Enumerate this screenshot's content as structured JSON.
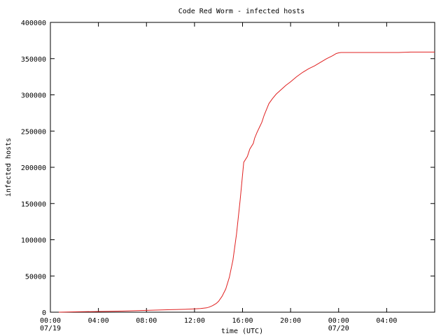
{
  "chart_data": {
    "type": "line",
    "title": "Code Red Worm - infected hosts",
    "xlabel": "time (UTC)",
    "ylabel": "infected hosts",
    "ylim": [
      0,
      400000
    ],
    "xlim": [
      0,
      32
    ],
    "grid": false,
    "yticks": [
      {
        "value": 0,
        "label": "0"
      },
      {
        "value": 50000,
        "label": "50000"
      },
      {
        "value": 100000,
        "label": "100000"
      },
      {
        "value": 150000,
        "label": "150000"
      },
      {
        "value": 200000,
        "label": "200000"
      },
      {
        "value": 250000,
        "label": "250000"
      },
      {
        "value": 300000,
        "label": "300000"
      },
      {
        "value": 350000,
        "label": "350000"
      },
      {
        "value": 400000,
        "label": "400000"
      }
    ],
    "xticks": [
      {
        "value": 0,
        "label": "00:00",
        "sublabel": "07/19"
      },
      {
        "value": 4,
        "label": "04:00",
        "sublabel": ""
      },
      {
        "value": 8,
        "label": "08:00",
        "sublabel": ""
      },
      {
        "value": 12,
        "label": "12:00",
        "sublabel": ""
      },
      {
        "value": 16,
        "label": "16:00",
        "sublabel": ""
      },
      {
        "value": 20,
        "label": "20:00",
        "sublabel": ""
      },
      {
        "value": 24,
        "label": "00:00",
        "sublabel": "07/20"
      },
      {
        "value": 28,
        "label": "04:00",
        "sublabel": ""
      }
    ],
    "series": [
      {
        "color": "#e02020",
        "x": [
          0.7,
          2,
          4,
          6,
          8,
          10,
          11.2,
          12,
          12.5,
          13,
          13.2,
          13.5,
          13.8,
          14,
          14.3,
          14.6,
          14.9,
          15.2,
          15.5,
          15.8,
          16.1,
          16.4,
          16.6,
          16.9,
          17.0,
          17.2,
          17.4,
          17.6,
          17.8,
          18.0,
          18.2,
          18.5,
          18.8,
          19.2,
          19.6,
          20.0,
          20.5,
          21.0,
          21.5,
          22.0,
          22.5,
          23.0,
          23.5,
          23.8,
          24.0,
          24.2,
          24.6,
          25,
          26,
          27,
          28,
          29,
          30,
          31,
          32
        ],
        "y": [
          0,
          500,
          1000,
          1500,
          2500,
          3500,
          4000,
          4500,
          5000,
          6000,
          7000,
          9000,
          12000,
          15000,
          22000,
          32000,
          48000,
          72000,
          108000,
          155000,
          207000,
          215000,
          225000,
          233000,
          240000,
          248000,
          255000,
          262000,
          272000,
          280000,
          288000,
          295000,
          301000,
          307000,
          313000,
          318000,
          325000,
          331000,
          336000,
          340000,
          345000,
          350000,
          354000,
          357000,
          358000,
          358500,
          358500,
          358500,
          358500,
          358500,
          358500,
          358500,
          359000,
          359000,
          359000
        ]
      }
    ]
  }
}
